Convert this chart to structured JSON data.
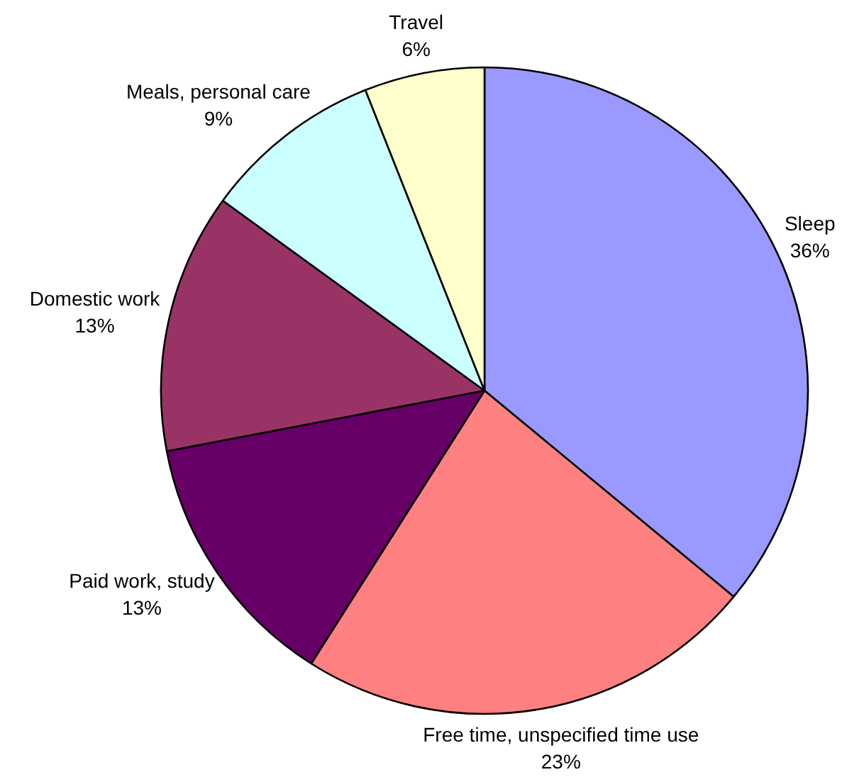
{
  "chart_data": {
    "type": "pie",
    "categories": [
      "Sleep",
      "Free time, unspecified time use",
      "Paid work, study",
      "Domestic work",
      "Meals, personal care",
      "Travel"
    ],
    "values": [
      36,
      23,
      13,
      13,
      9,
      6
    ],
    "colors": [
      "#9999ff",
      "#ff8080",
      "#660066",
      "#993366",
      "#ccffff",
      "#ffffcc"
    ],
    "value_labels": [
      "36%",
      "23%",
      "13%",
      "13%",
      "9%",
      "6%"
    ]
  }
}
